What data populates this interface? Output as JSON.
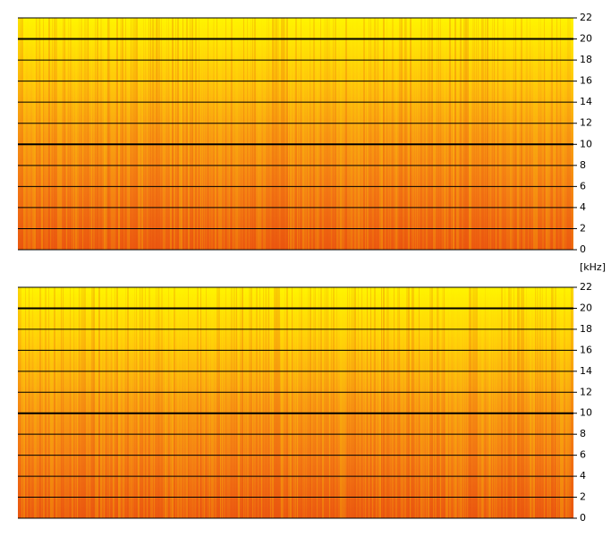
{
  "unit_label": "[kHz]",
  "chart_data": [
    {
      "type": "spectrogram",
      "ylim": [
        0,
        22
      ],
      "yticks": [
        0,
        2,
        4,
        6,
        8,
        10,
        12,
        14,
        16,
        18,
        20,
        22
      ],
      "bold_ticks": [
        10,
        20
      ],
      "grid": true
    },
    {
      "type": "spectrogram",
      "ylim": [
        0,
        22
      ],
      "yticks": [
        0,
        2,
        4,
        6,
        8,
        10,
        12,
        14,
        16,
        18,
        20,
        22
      ],
      "bold_ticks": [
        10,
        20
      ],
      "grid": true
    }
  ]
}
